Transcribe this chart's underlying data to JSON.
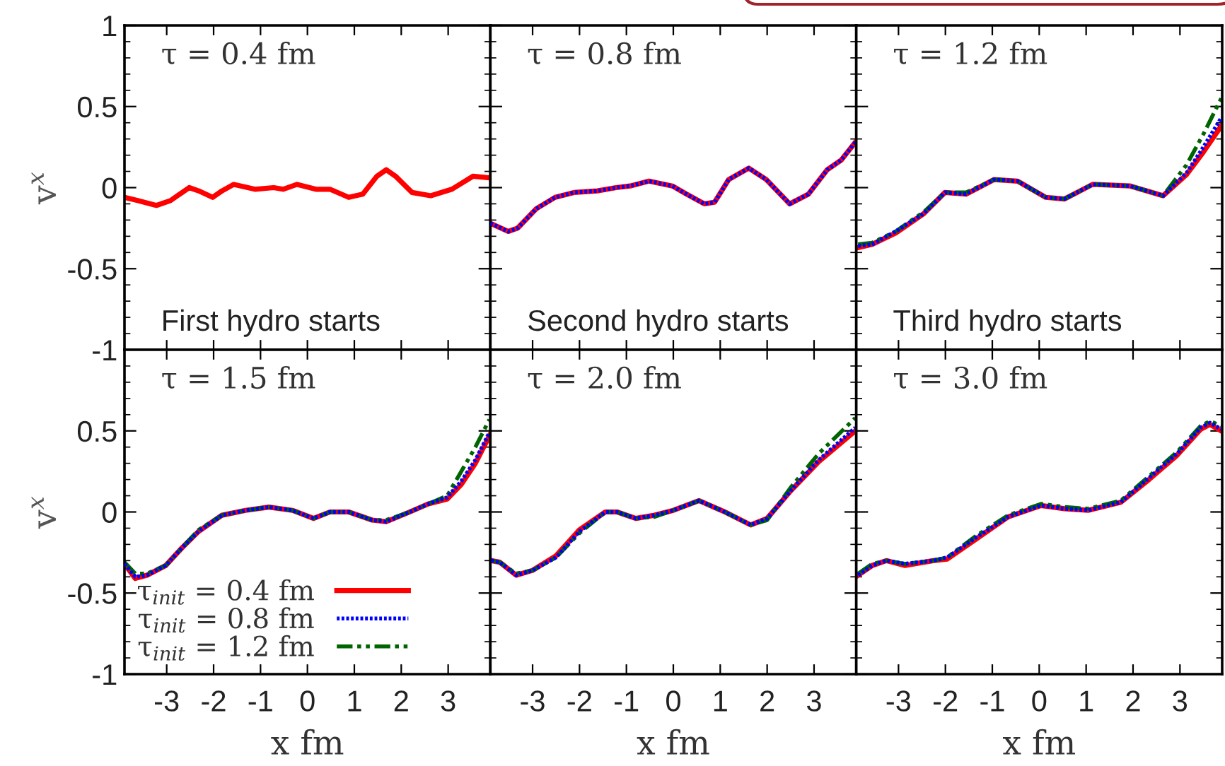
{
  "chart_data": [
    {
      "type": "line",
      "annotations": [
        "τ = 0.4 fm",
        "First hydro starts"
      ],
      "ylabel": "v$^{x}$",
      "xlim": [
        -3.9,
        3.9
      ],
      "xticks": [
        -3,
        -2,
        -1,
        0,
        1,
        2,
        3
      ],
      "ylim": [
        -1,
        1
      ],
      "yticks": [
        -1,
        -0.5,
        0,
        0.5,
        1
      ],
      "tick_labels": "y",
      "x": [
        -3.9,
        -3.62,
        -3.22,
        -2.92,
        -2.52,
        -2.32,
        -2.02,
        -1.82,
        -1.57,
        -1.12,
        -0.72,
        -0.52,
        -0.22,
        0.18,
        0.48,
        0.88,
        1.18,
        1.48,
        1.68,
        1.88,
        2.23,
        2.63,
        3.08,
        3.53,
        3.88
      ],
      "series": [
        {
          "color": "#ff0000",
          "line_style": "solid",
          "values": [
            -0.06,
            -0.08,
            -0.11,
            -0.08,
            0,
            -0.02,
            -0.06,
            -0.02,
            0.02,
            -0.01,
            0,
            -0.01,
            0.02,
            -0.01,
            -0.01,
            -0.06,
            -0.04,
            0.07,
            0.11,
            0.07,
            -0.03,
            -0.05,
            -0.01,
            0.07,
            0.06
          ]
        }
      ]
    },
    {
      "type": "line",
      "annotations": [
        "τ = 0.8 fm",
        "Second hydro starts"
      ],
      "xlim": [
        -3.9,
        3.9
      ],
      "xticks": [
        -3,
        -2,
        -1,
        0,
        1,
        2,
        3
      ],
      "ylim": [
        -1,
        1
      ],
      "yticks": [
        -1,
        -0.5,
        0,
        0.5,
        1
      ],
      "tick_labels": false,
      "x": [
        -3.9,
        -3.52,
        -3.32,
        -2.92,
        -2.52,
        -2.12,
        -1.62,
        -1.22,
        -0.92,
        -0.52,
        -0.02,
        0.28,
        0.66,
        0.88,
        1.18,
        1.61,
        1.98,
        2.48,
        2.88,
        3.28,
        3.58,
        3.88
      ],
      "series": [
        {
          "color": "#ff0000",
          "line_style": "solid",
          "values": [
            -0.22,
            -0.27,
            -0.25,
            -0.13,
            -0.06,
            -0.03,
            -0.02,
            0,
            0.01,
            0.04,
            0.01,
            -0.04,
            -0.1,
            -0.09,
            0.05,
            0.12,
            0.05,
            -0.1,
            -0.04,
            0.11,
            0.17,
            0.28
          ]
        },
        {
          "color": "#0000ff",
          "line_style": "dotted",
          "values": [
            -0.22,
            -0.27,
            -0.25,
            -0.13,
            -0.06,
            -0.03,
            -0.02,
            0,
            0.01,
            0.04,
            0.01,
            -0.04,
            -0.1,
            -0.09,
            0.05,
            0.12,
            0.05,
            -0.1,
            -0.04,
            0.11,
            0.17,
            0.28
          ]
        }
      ]
    },
    {
      "type": "line",
      "annotations": [
        "τ = 1.2 fm",
        "Third hydro starts"
      ],
      "xlim": [
        -3.9,
        3.9
      ],
      "xticks": [
        -3,
        -2,
        -1,
        0,
        1,
        2,
        3
      ],
      "ylim": [
        -1,
        1
      ],
      "yticks": [
        -1,
        -0.5,
        0,
        0.5,
        1
      ],
      "tick_labels": false,
      "x": [
        -3.86,
        -3.56,
        -3.06,
        -2.46,
        -2.01,
        -1.56,
        -0.96,
        -0.46,
        0.14,
        0.54,
        1.14,
        1.94,
        2.64,
        3.14,
        3.5,
        3.88
      ],
      "series": [
        {
          "color": "#ff0000",
          "line_style": "solid",
          "values": [
            -0.37,
            -0.35,
            -0.28,
            -0.16,
            -0.03,
            -0.04,
            0.05,
            0.04,
            -0.06,
            -0.07,
            0.02,
            0.01,
            -0.05,
            0.08,
            0.22,
            0.38
          ]
        },
        {
          "color": "#0000ff",
          "line_style": "dotted",
          "values": [
            -0.36,
            -0.35,
            -0.27,
            -0.16,
            -0.03,
            -0.04,
            0.05,
            0.04,
            -0.06,
            -0.07,
            0.02,
            0.01,
            -0.05,
            0.09,
            0.25,
            0.43
          ]
        },
        {
          "color": "#006400",
          "line_style": "dashed",
          "values": [
            -0.35,
            -0.34,
            -0.27,
            -0.15,
            -0.03,
            -0.03,
            0.05,
            0.04,
            -0.06,
            -0.07,
            0.02,
            0.01,
            -0.05,
            0.14,
            0.33,
            0.55
          ]
        }
      ]
    },
    {
      "type": "line",
      "annotations": [
        "τ = 1.5 fm"
      ],
      "xlabel": "x fm",
      "ylabel": "v$^{x}$",
      "xlim": [
        -3.9,
        3.9
      ],
      "xticks": [
        -3,
        -2,
        -1,
        0,
        1,
        2,
        3
      ],
      "ylim": [
        -1,
        1
      ],
      "yticks": [
        -1,
        -0.5,
        0,
        0.5
      ],
      "legend": "bottom left",
      "x": [
        -3.9,
        -3.67,
        -3.42,
        -3.02,
        -2.67,
        -2.32,
        -1.82,
        -1.32,
        -0.82,
        -0.32,
        0.13,
        0.48,
        0.88,
        1.38,
        1.68,
        2.18,
        2.58,
        2.98,
        3.28,
        3.58,
        3.88
      ],
      "series": [
        {
          "name": "τ$_{init}$ = 0.4 fm",
          "color": "#ff0000",
          "line_style": "solid",
          "values": [
            -0.32,
            -0.41,
            -0.39,
            -0.33,
            -0.22,
            -0.12,
            -0.02,
            0.01,
            0.03,
            0.01,
            -0.04,
            0,
            0,
            -0.05,
            -0.06,
            0,
            0.05,
            0.08,
            0.17,
            0.3,
            0.47
          ]
        },
        {
          "name": "τ$_{init}$ = 0.8 fm",
          "color": "#0000ff",
          "line_style": "dotted",
          "values": [
            -0.32,
            -0.4,
            -0.39,
            -0.33,
            -0.22,
            -0.12,
            -0.02,
            0.01,
            0.03,
            0.01,
            -0.04,
            0,
            0,
            -0.05,
            -0.06,
            0,
            0.05,
            0.09,
            0.19,
            0.32,
            0.49
          ]
        },
        {
          "name": "τ$_{init}$ = 1.2 fm",
          "color": "#006400",
          "line_style": "dashed",
          "values": [
            -0.31,
            -0.38,
            -0.38,
            -0.33,
            -0.22,
            -0.11,
            -0.02,
            0.01,
            0.03,
            0.01,
            -0.04,
            0,
            0,
            -0.05,
            -0.05,
            0,
            0.05,
            0.1,
            0.25,
            0.4,
            0.57
          ]
        }
      ]
    },
    {
      "type": "line",
      "annotations": [
        "τ = 2.0 fm"
      ],
      "xlabel": "x fm",
      "xlim": [
        -3.9,
        3.9
      ],
      "xticks": [
        -3,
        -2,
        -1,
        0,
        1,
        2,
        3
      ],
      "ylim": [
        -1,
        1
      ],
      "yticks": [
        -1,
        -0.5,
        0,
        0.5
      ],
      "tick_labels": "x",
      "x": [
        -3.88,
        -3.7,
        -3.35,
        -3.0,
        -2.5,
        -2.0,
        -1.45,
        -1.2,
        -0.8,
        -0.4,
        0,
        0.55,
        1.1,
        1.65,
        2.0,
        2.5,
        3.1,
        3.88
      ],
      "series": [
        {
          "color": "#ff0000",
          "line_style": "solid",
          "values": [
            -0.3,
            -0.31,
            -0.39,
            -0.36,
            -0.27,
            -0.11,
            0,
            0,
            -0.04,
            -0.02,
            0.01,
            0.07,
            0,
            -0.08,
            -0.04,
            0.13,
            0.31,
            0.5
          ]
        },
        {
          "color": "#0000ff",
          "line_style": "dotted",
          "values": [
            -0.3,
            -0.31,
            -0.39,
            -0.36,
            -0.28,
            -0.12,
            0,
            0,
            -0.04,
            -0.02,
            0.01,
            0.07,
            0,
            -0.08,
            -0.04,
            0.13,
            0.32,
            0.52
          ]
        },
        {
          "color": "#006400",
          "line_style": "dashed",
          "values": [
            -0.3,
            -0.31,
            -0.38,
            -0.36,
            -0.28,
            -0.13,
            0,
            0,
            -0.04,
            -0.03,
            0.01,
            0.07,
            0,
            -0.08,
            -0.05,
            0.15,
            0.36,
            0.58
          ]
        }
      ]
    },
    {
      "type": "line",
      "annotations": [
        "τ = 3.0 fm"
      ],
      "xlabel": "x fm",
      "xlim": [
        -3.9,
        3.9
      ],
      "xticks": [
        -3,
        -2,
        -1,
        0,
        1,
        2,
        3
      ],
      "ylim": [
        -1,
        1
      ],
      "yticks": [
        -1,
        -0.5,
        0,
        0.5
      ],
      "tick_labels": "x",
      "x": [
        -3.86,
        -3.56,
        -3.26,
        -2.86,
        -2.26,
        -1.96,
        -1.36,
        -0.66,
        0.04,
        0.54,
        1.04,
        1.74,
        2.34,
        2.94,
        3.44,
        3.64,
        3.88
      ],
      "series": [
        {
          "color": "#ff0000",
          "line_style": "solid",
          "values": [
            -0.39,
            -0.33,
            -0.3,
            -0.33,
            -0.3,
            -0.29,
            -0.17,
            -0.03,
            0.04,
            0.02,
            0.01,
            0.06,
            0.2,
            0.35,
            0.51,
            0.54,
            0.5
          ]
        },
        {
          "color": "#0000ff",
          "line_style": "dotted",
          "values": [
            -0.39,
            -0.33,
            -0.3,
            -0.32,
            -0.3,
            -0.28,
            -0.16,
            -0.03,
            0.04,
            0.02,
            0.01,
            0.06,
            0.21,
            0.36,
            0.52,
            0.55,
            0.51
          ]
        },
        {
          "color": "#006400",
          "line_style": "dashed",
          "values": [
            -0.38,
            -0.32,
            -0.3,
            -0.32,
            -0.3,
            -0.28,
            -0.15,
            -0.02,
            0.05,
            0.03,
            0.02,
            0.07,
            0.22,
            0.37,
            0.53,
            0.56,
            0.53
          ]
        }
      ]
    }
  ]
}
